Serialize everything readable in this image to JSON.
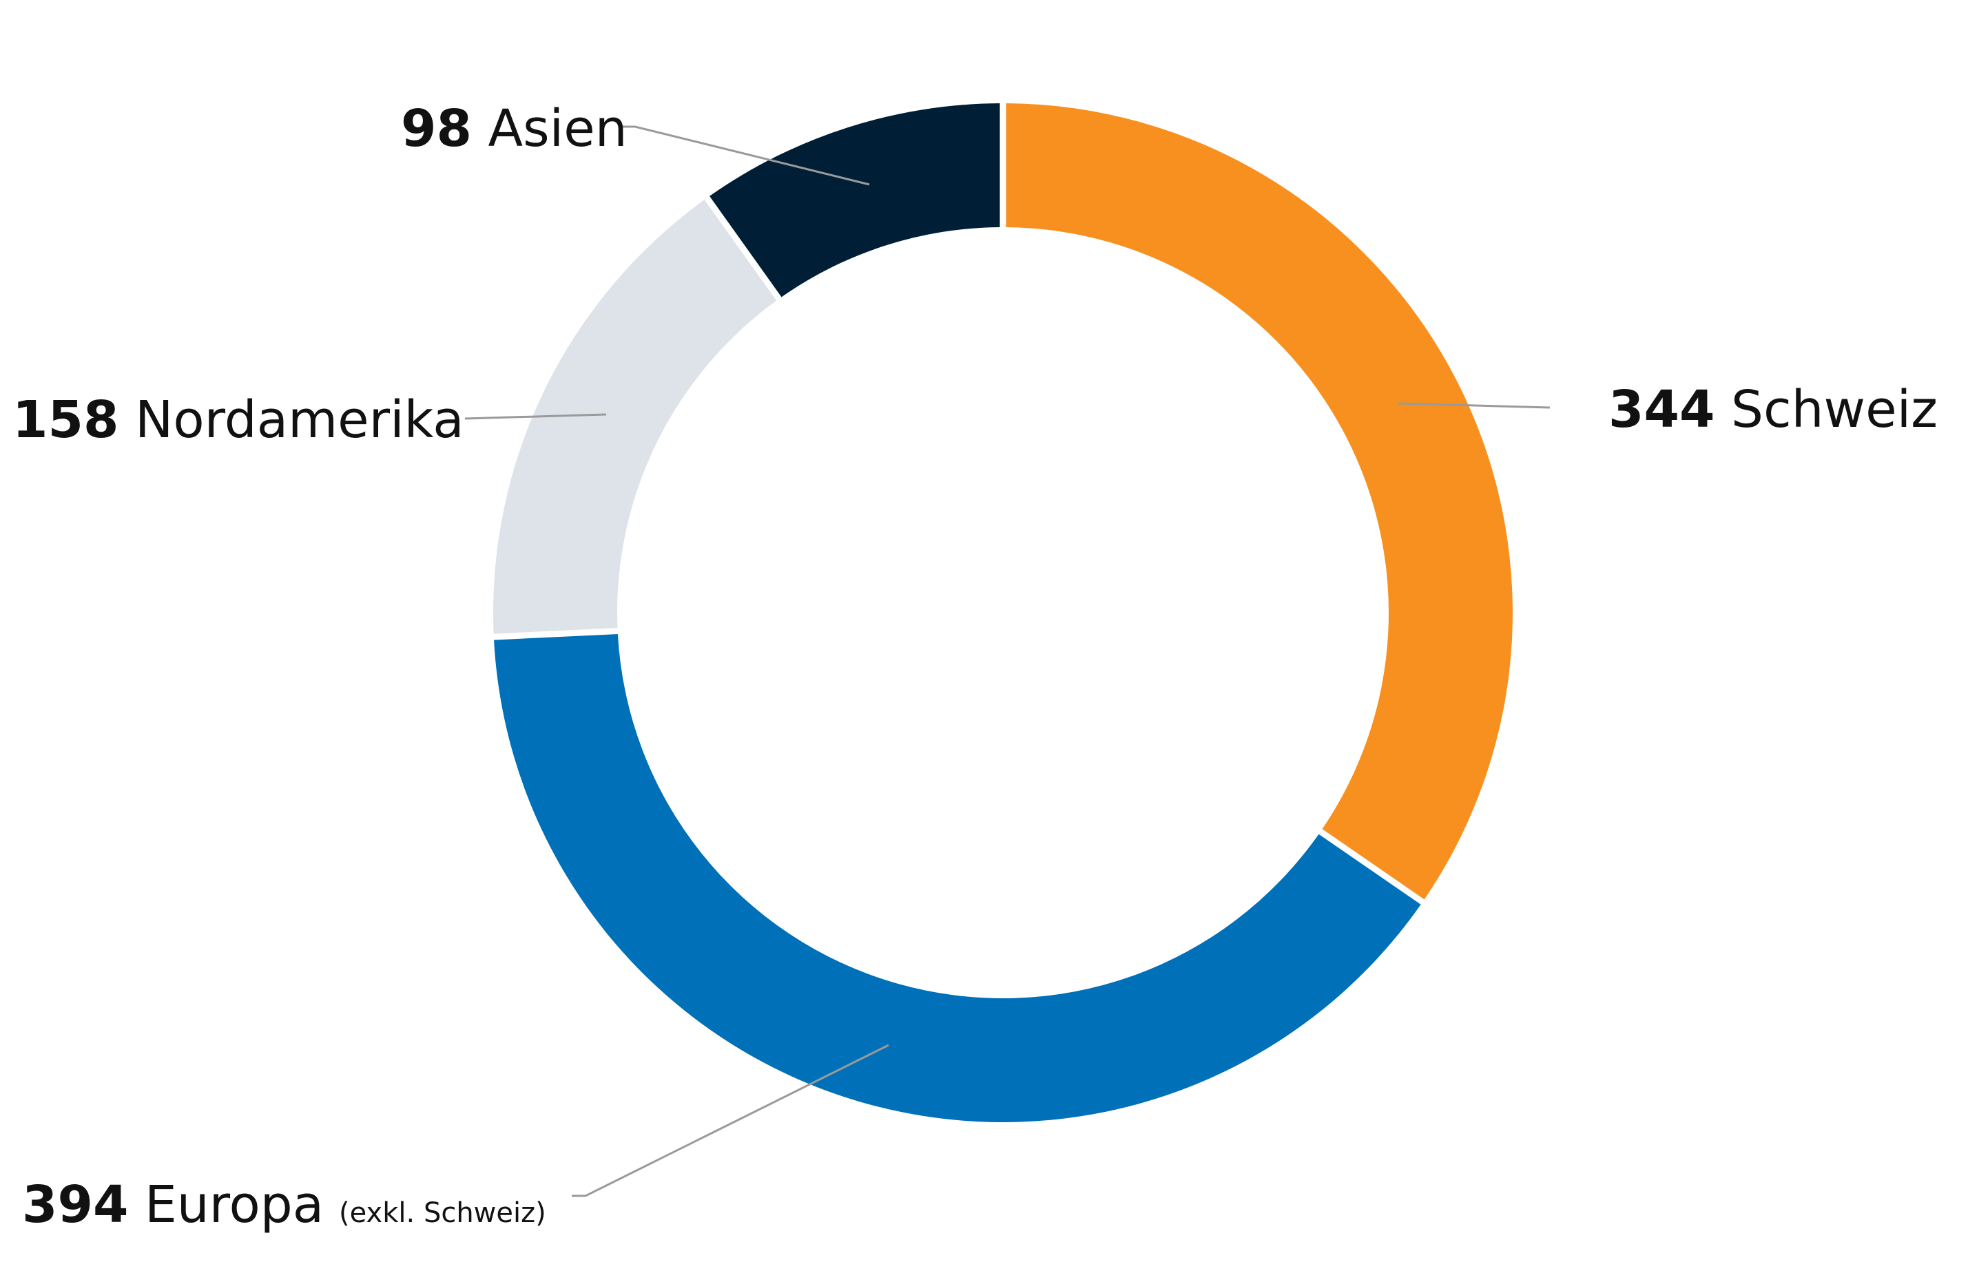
{
  "chart_data": {
    "type": "pie",
    "variant": "donut",
    "title": "",
    "slices": [
      {
        "label": "Schweiz",
        "value": 344,
        "note": "",
        "color": "#F7901E"
      },
      {
        "label": "Europa",
        "value": 394,
        "note": "(exkl. Schweiz)",
        "color": "#0070B8"
      },
      {
        "label": "Nordamerika",
        "value": 158,
        "note": "",
        "color": "#DEE3EA"
      },
      {
        "label": "Asien",
        "value": 98,
        "note": "",
        "color": "#001F36"
      }
    ],
    "start_angle": "12 o'clock",
    "direction": "clockwise"
  }
}
